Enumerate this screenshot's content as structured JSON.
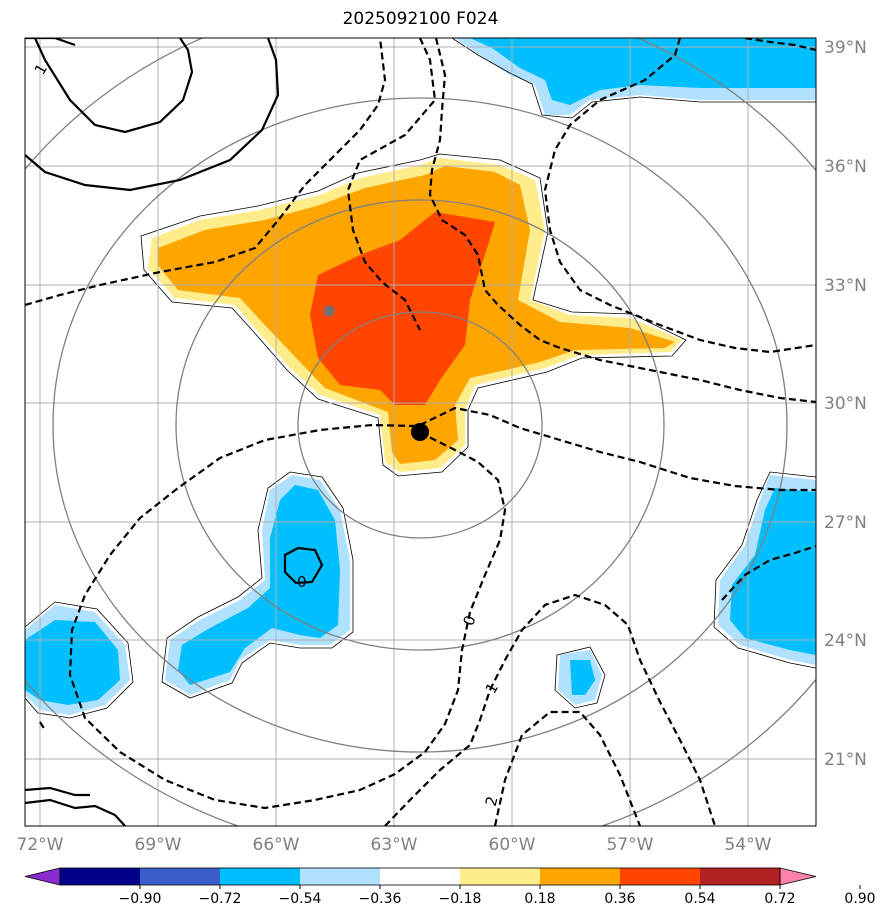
{
  "title": "2025092100 F024",
  "map": {
    "lat_labels": [
      "39°N",
      "36°N",
      "33°N",
      "30°N",
      "27°N",
      "24°N",
      "21°N"
    ],
    "lon_labels": [
      "72°W",
      "69°W",
      "66°W",
      "63°W",
      "60°W",
      "57°W",
      "54°W"
    ],
    "lat_values": [
      39,
      36,
      33,
      30,
      27,
      24,
      21
    ],
    "lon_values": [
      -72,
      -69,
      -66,
      -63,
      -60,
      -57,
      -54
    ],
    "storm_center": {
      "lon": -62.3,
      "lat": 29.1
    },
    "secondary_marker": {
      "lon": -64.9,
      "lat": 32.3
    },
    "contour_labels": [
      "1",
      "0",
      "0",
      "1",
      "2"
    ]
  },
  "colorbar": {
    "ticks": [
      "−0.90",
      "−0.72",
      "−0.54",
      "−0.36",
      "−0.18",
      "0.18",
      "0.36",
      "0.54",
      "0.72",
      "0.90"
    ],
    "colors": [
      "#8a2bd2",
      "#00008b",
      "#3a5fcd",
      "#00bfff",
      "#b0e2ff",
      "#ffffff",
      "#ffec8b",
      "#ffa500",
      "#ff4500",
      "#b22222",
      "#ff82ab"
    ]
  },
  "colors": {
    "orange": "#ffa500",
    "red_orange": "#ff4500",
    "light_yellow": "#ffec8b",
    "deep_sky_blue": "#00bfff",
    "light_blue": "#b0e2ff",
    "grid": "#b0b0b0",
    "ring": "#808080"
  }
}
